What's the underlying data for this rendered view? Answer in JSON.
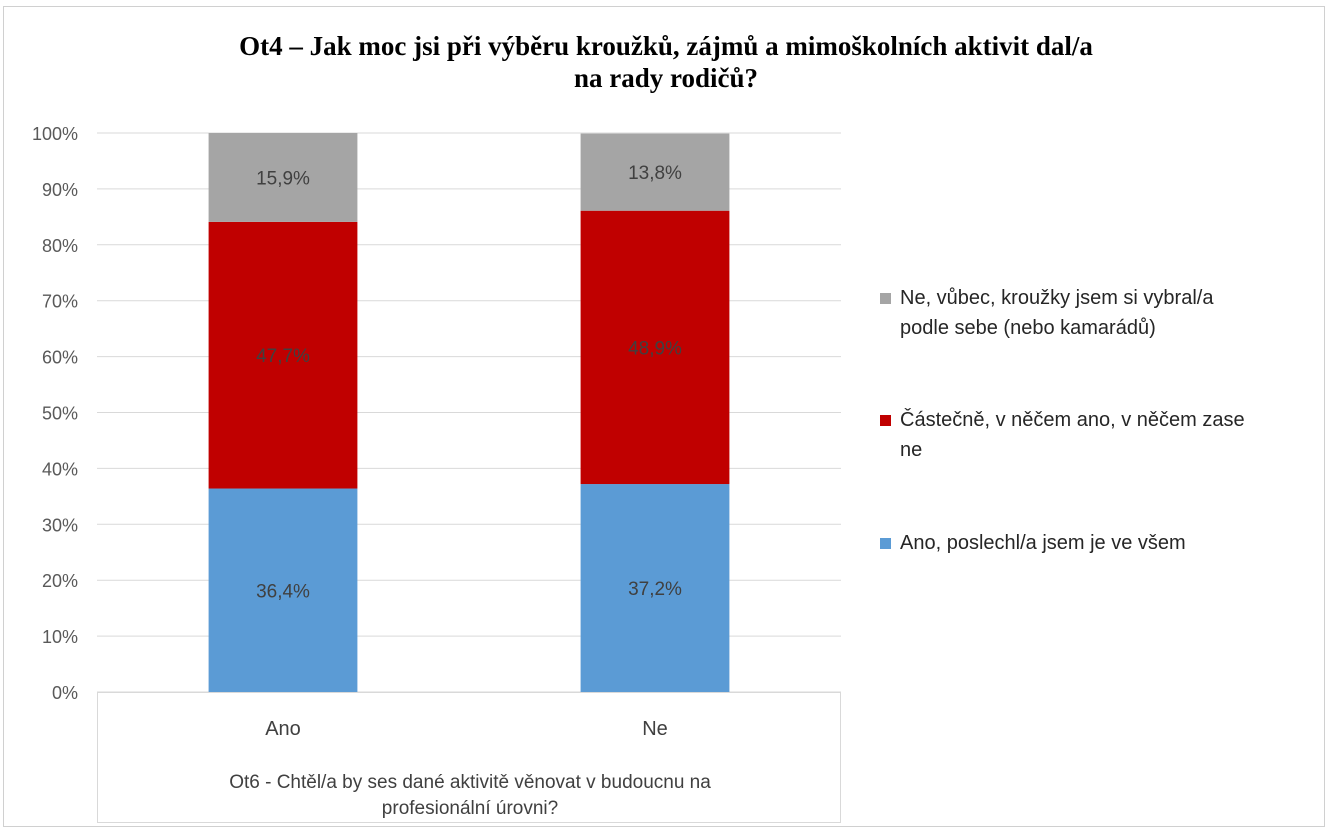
{
  "chart_data": {
    "type": "bar",
    "stacked": true,
    "percent": true,
    "title": "Ot4 – Jak moc jsi při výběru kroužků, zájmů a mimoškolních aktivit dal/a na rady rodičů?",
    "title_lines": [
      "Ot4 – Jak moc jsi při výběru kroužků, zájmů a mimoškolních aktivit dal/a",
      "na rady rodičů?"
    ],
    "xlabel": "Ot6 - Chtěl/a by ses dané aktivitě věnovat v budoucnu na profesionální úrovni?",
    "xlabel_lines": [
      "Ot6 - Chtěl/a by ses dané aktivitě věnovat v budoucnu na",
      "profesionální úrovni?"
    ],
    "ylabel": "",
    "ylim": [
      0,
      100
    ],
    "yticks": [
      "0%",
      "10%",
      "20%",
      "30%",
      "40%",
      "50%",
      "60%",
      "70%",
      "80%",
      "90%",
      "100%"
    ],
    "grid": true,
    "legend_position": "right",
    "categories": [
      "Ano",
      "Ne"
    ],
    "series": [
      {
        "name": "Ano, poslechl/a jsem je ve všem",
        "values": [
          36.4,
          37.2
        ],
        "labels": [
          "36,4%",
          "37,2%"
        ],
        "color": "#5b9bd5"
      },
      {
        "name": "Částečně, v něčem ano, v něčem zase ne",
        "values": [
          47.7,
          48.9
        ],
        "labels": [
          "47,7%",
          "48,9%"
        ],
        "color": "#c00000"
      },
      {
        "name": "Ne, vůbec, kroužky jsem si vybral/a podle sebe (nebo kamarádů)",
        "values": [
          15.9,
          13.8
        ],
        "labels": [
          "15,9%",
          "13,8%"
        ],
        "color": "#a5a5a5"
      }
    ],
    "legend": [
      {
        "lines": [
          "Ne, vůbec, kroužky jsem si vybral/a",
          "podle sebe (nebo kamarádů)"
        ],
        "color": "#a5a5a5"
      },
      {
        "lines": [
          "Částečně, v něčem ano, v něčem zase",
          "ne"
        ],
        "color": "#c00000"
      },
      {
        "lines": [
          "Ano, poslechl/a jsem je ve všem"
        ],
        "color": "#5b9bd5"
      }
    ]
  }
}
